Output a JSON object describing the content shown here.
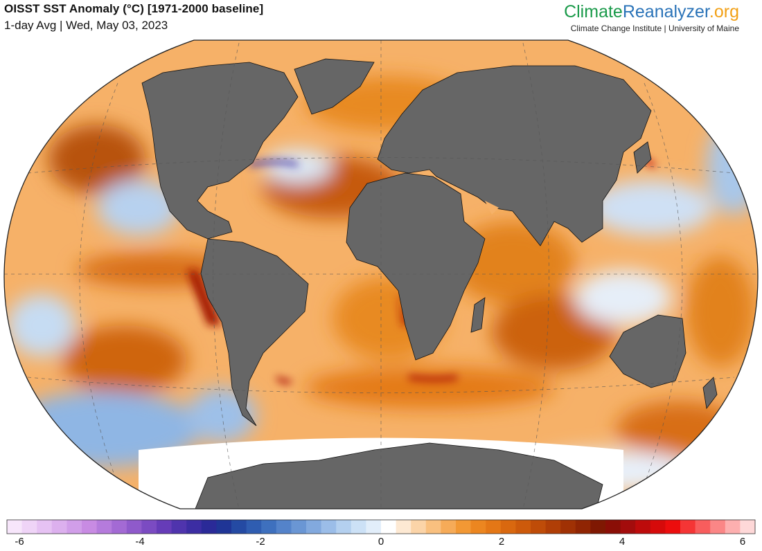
{
  "header": {
    "title": "OISST SST Anomaly (°C) [1971-2000 baseline]",
    "subtitle": "1-day Avg | Wed, May 03, 2023"
  },
  "brand": {
    "logo_part1": "Climate",
    "logo_part2": "Reanalyzer",
    "logo_part3": ".org",
    "affiliation": "Climate Change Institute | University of Maine",
    "colors": {
      "climate": "#1a9a4a",
      "reanalyzer": "#2a73b8",
      "org": "#f2a015"
    }
  },
  "map": {
    "projection": "Winkel Tripel",
    "variable": "SST anomaly",
    "land_color": "#666666",
    "ice_color": "#ffffff",
    "graticule": "dashed"
  },
  "colorbar": {
    "min": -6,
    "max": 6,
    "ticks": [
      "-6",
      "-4",
      "-2",
      "0",
      "2",
      "4",
      "6"
    ],
    "colors": [
      "#f7e6fb",
      "#efd4f7",
      "#e6c2f3",
      "#dcb0ee",
      "#d19ee9",
      "#c88be3",
      "#b57bdc",
      "#a36ad4",
      "#8f5acb",
      "#7b4bc2",
      "#663cb8",
      "#4f34ad",
      "#3c2da3",
      "#2a2a98",
      "#1f3596",
      "#244aa3",
      "#2f5db1",
      "#3e70be",
      "#5483ca",
      "#6a96d4",
      "#82a9de",
      "#9bbde8",
      "#b4d0ef",
      "#cce1f6",
      "#e2eefa",
      "#ffffff",
      "#fde9d3",
      "#fbd4a8",
      "#f9c07f",
      "#f6ab58",
      "#f29834",
      "#ec8620",
      "#e47716",
      "#d9680f",
      "#cd5a0b",
      "#bf4c08",
      "#b03e06",
      "#a03104",
      "#902503",
      "#7f1802",
      "#8a0e06",
      "#a30c0c",
      "#bd0b0b",
      "#d60a0a",
      "#ec0d0d",
      "#f53535",
      "#f85d5d",
      "#fb8686",
      "#fdafaf",
      "#fed8d8"
    ]
  }
}
